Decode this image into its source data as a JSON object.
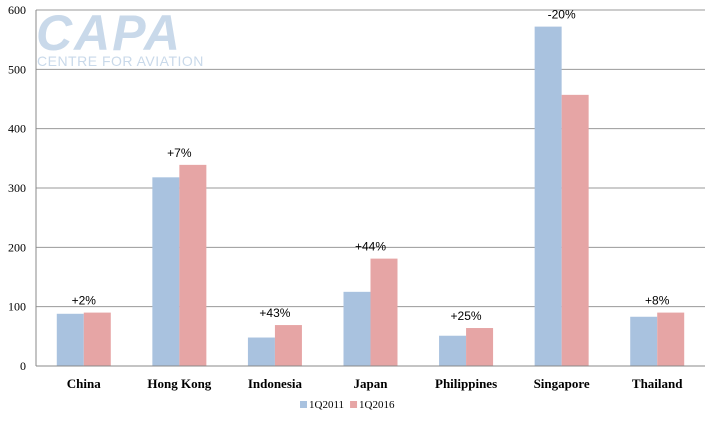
{
  "logo": {
    "name": "CAPA",
    "tagline": "CENTRE FOR AVIATION",
    "color": "#c9d9ea"
  },
  "chart_data": {
    "type": "bar",
    "title": "",
    "xlabel": "",
    "ylabel": "",
    "ylim": [
      0,
      600
    ],
    "yticks": [
      0,
      100,
      200,
      300,
      400,
      500,
      600
    ],
    "grid": true,
    "legend_position": "bottom",
    "categories": [
      "China",
      "Hong Kong",
      "Indonesia",
      "Japan",
      "Philippines",
      "Singapore",
      "Thailand"
    ],
    "series": [
      {
        "name": "1Q2011",
        "color": "#a9c2df",
        "values": [
          88,
          318,
          48,
          125,
          51,
          572,
          83
        ]
      },
      {
        "name": "1Q2016",
        "color": "#e6a5a5",
        "values": [
          90,
          339,
          69,
          181,
          64,
          457,
          90
        ]
      }
    ],
    "annotations": [
      "+2%",
      "+7%",
      "+43%",
      "+44%",
      "+25%",
      "-20%",
      "+8%"
    ]
  }
}
